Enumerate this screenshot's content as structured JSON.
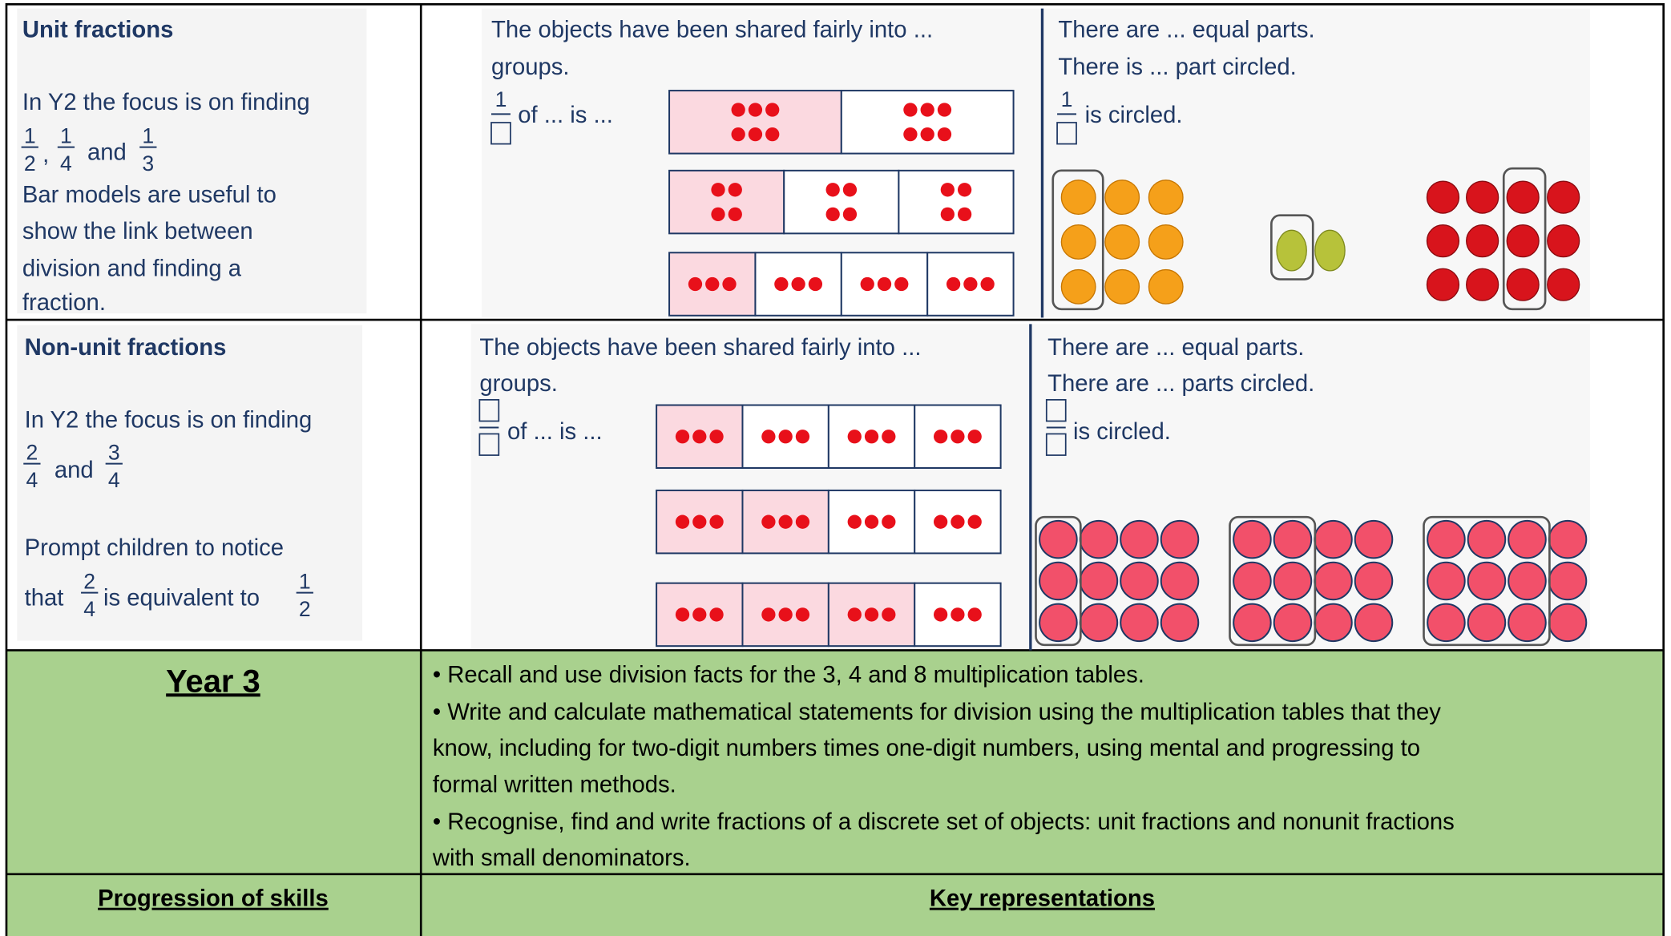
{
  "unit_fractions": {
    "title": "Unit fractions",
    "intro": "In Y2 the focus is on finding",
    "fractions": [
      {
        "numerator": "1",
        "denominator": "2"
      },
      {
        "numerator": "1",
        "denominator": "4"
      },
      {
        "numerator": "1",
        "denominator": "3"
      }
    ],
    "separators": [
      ",",
      "and"
    ],
    "body": [
      "Bar models are useful to",
      "show the link between",
      "division and finding a",
      "fraction."
    ],
    "sharing_text": [
      "The objects have been shared fairly into ...",
      "groups."
    ],
    "statement_numerator": "1",
    "statement": "of ... is ...",
    "parts_text": [
      "There are ... equal parts.",
      "There is ... part circled."
    ],
    "circled_numerator": "1",
    "circled": "is circled."
  },
  "non_unit_fractions": {
    "title": "Non-unit fractions",
    "intro": "In Y2 the focus is on finding",
    "fractions": [
      {
        "numerator": "2",
        "denominator": "4"
      },
      {
        "numerator": "3",
        "denominator": "4"
      }
    ],
    "separator": "and",
    "prompt": "Prompt children to notice",
    "that": "that",
    "equivalence": [
      {
        "numerator": "2",
        "denominator": "4"
      },
      {
        "numerator": "1",
        "denominator": "2"
      }
    ],
    "equivalent_text": "is equivalent to",
    "sharing_text": [
      "The objects have been shared fairly into ...",
      "groups."
    ],
    "statement": "of ... is ...",
    "parts_text": [
      "There are ... equal parts.",
      "There are ... parts circled."
    ],
    "circled": "is circled."
  },
  "year": {
    "title": "Year 3",
    "lines": [
      "• Recall and use division facts for the 3, 4 and 8 multiplication tables.",
      "• Write and calculate mathematical statements for division using the multiplication tables that they",
      "know, including for two-digit numbers times one-digit numbers, using mental and progressing to",
      "formal written methods.",
      "• Recognise, find and write fractions of a discrete set of objects: unit fractions and nonunit fractions",
      "with small denominators."
    ]
  },
  "footer": {
    "left": "Progression of skills",
    "right": "Key representations"
  }
}
